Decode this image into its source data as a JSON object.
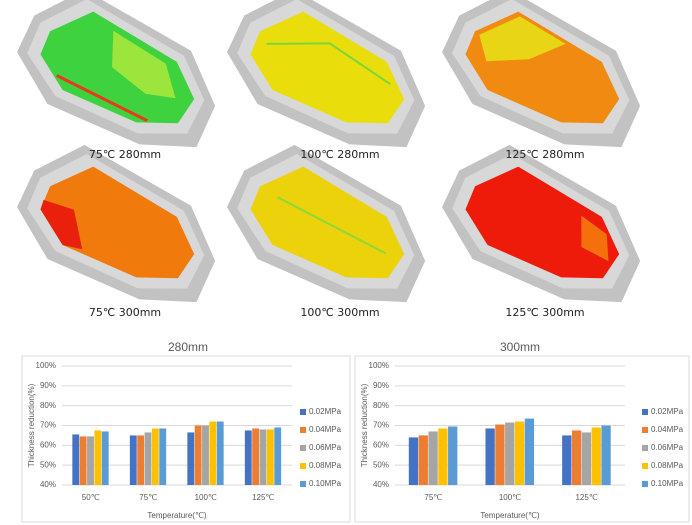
{
  "figure": {
    "captions": [
      "75℃ 280mm",
      "100℃ 280mm",
      "125℃ 280mm",
      "75℃ 300mm",
      "100℃ 300mm",
      "125℃ 300mm"
    ]
  },
  "chart_data": [
    {
      "type": "bar",
      "title": "280mm",
      "xlabel": "Temperature(℃)",
      "ylabel": "Thickness reduction(%)",
      "categories": [
        "50℃",
        "75℃",
        "100℃",
        "125℃"
      ],
      "series": [
        {
          "name": "0.02MPa",
          "color": "#4472c4",
          "values": [
            65.5,
            65,
            66.5,
            67.5
          ]
        },
        {
          "name": "0.04MPa",
          "color": "#ed7d31",
          "values": [
            64.5,
            65,
            70,
            68.5
          ]
        },
        {
          "name": "0.06MPa",
          "color": "#a5a5a5",
          "values": [
            64.5,
            66.5,
            70,
            68
          ]
        },
        {
          "name": "0.08MPa",
          "color": "#ffc000",
          "values": [
            67.5,
            68.5,
            72,
            68
          ]
        },
        {
          "name": "0.10MPa",
          "color": "#5b9bd5",
          "values": [
            67,
            68.5,
            72,
            69
          ]
        }
      ],
      "ylim": [
        40,
        100
      ],
      "yticks": [
        {
          "value": 40,
          "label": "40%"
        },
        {
          "value": 50,
          "label": "50%"
        },
        {
          "value": 60,
          "label": "60%"
        },
        {
          "value": 70,
          "label": "70%"
        },
        {
          "value": 80,
          "label": "80%"
        },
        {
          "value": 90,
          "label": "90%"
        },
        {
          "value": 100,
          "label": "100%"
        }
      ],
      "grid": true,
      "legend": "right"
    },
    {
      "type": "bar",
      "title": "300mm",
      "xlabel": "Temperature(℃)",
      "ylabel": "Thickness reduction(%)",
      "categories": [
        "75℃",
        "100℃",
        "125℃"
      ],
      "series": [
        {
          "name": "0.02MPa",
          "color": "#4472c4",
          "values": [
            64,
            68.5,
            65
          ]
        },
        {
          "name": "0.04MPa",
          "color": "#ed7d31",
          "values": [
            65,
            70.5,
            67.5
          ]
        },
        {
          "name": "0.06MPa",
          "color": "#a5a5a5",
          "values": [
            67,
            71.5,
            66.5
          ]
        },
        {
          "name": "0.08MPa",
          "color": "#ffc000",
          "values": [
            68.5,
            72,
            69
          ]
        },
        {
          "name": "0.10MPa",
          "color": "#5b9bd5",
          "values": [
            69.5,
            73.5,
            70
          ]
        }
      ],
      "ylim": [
        40,
        100
      ],
      "yticks": [
        {
          "value": 40,
          "label": "40%"
        },
        {
          "value": 50,
          "label": "50%"
        },
        {
          "value": 60,
          "label": "60%"
        },
        {
          "value": 70,
          "label": "70%"
        },
        {
          "value": 80,
          "label": "80%"
        },
        {
          "value": 90,
          "label": "90%"
        },
        {
          "value": 100,
          "label": "100%"
        }
      ],
      "grid": true,
      "legend": "right"
    }
  ]
}
